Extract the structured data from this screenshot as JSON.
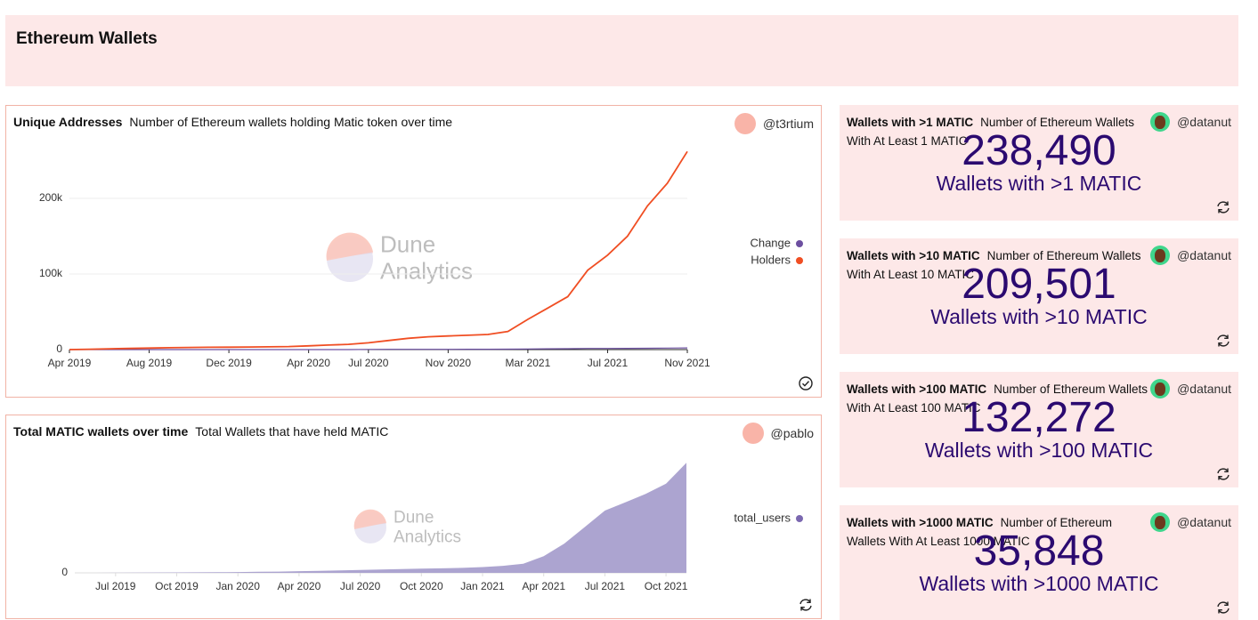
{
  "header": {
    "title": "Ethereum Wallets"
  },
  "chart_data": [
    {
      "type": "line",
      "title": "Unique Addresses",
      "subtitle": "Number of Ethereum wallets holding Matic token over time",
      "author": "@t3rtium",
      "watermark": [
        "Dune",
        "Analytics"
      ],
      "x": [
        "2019-04",
        "2019-05",
        "2019-06",
        "2019-07",
        "2019-08",
        "2019-09",
        "2019-10",
        "2019-11",
        "2019-12",
        "2020-01",
        "2020-02",
        "2020-03",
        "2020-04",
        "2020-05",
        "2020-06",
        "2020-07",
        "2020-08",
        "2020-09",
        "2020-10",
        "2020-11",
        "2020-12",
        "2021-01",
        "2021-02",
        "2021-03",
        "2021-04",
        "2021-05",
        "2021-06",
        "2021-07",
        "2021-08",
        "2021-09",
        "2021-10",
        "2021-11"
      ],
      "series": [
        {
          "name": "Change",
          "color": "#6c4fa0",
          "values": [
            0,
            0,
            0,
            0,
            0,
            0,
            0,
            0,
            0,
            0,
            0,
            0,
            0,
            0,
            0,
            200,
            300,
            300,
            400,
            400,
            500,
            500,
            600,
            800,
            1000,
            1200,
            1500,
            1500,
            1600,
            1800,
            2000,
            2200
          ]
        },
        {
          "name": "Holders",
          "color": "#f04e23",
          "values": [
            0,
            500,
            1000,
            1500,
            2000,
            2500,
            2800,
            3000,
            3200,
            3400,
            3600,
            4000,
            5000,
            6000,
            7000,
            9000,
            12000,
            15000,
            17000,
            18000,
            19000,
            20000,
            24000,
            40000,
            55000,
            70000,
            105000,
            125000,
            150000,
            190000,
            220000,
            262000
          ]
        }
      ],
      "ylim": [
        0,
        280000
      ],
      "yticks": [
        0,
        {
          "value": 100000,
          "label": "100k"
        },
        {
          "value": 200000,
          "label": "200k"
        }
      ],
      "xticks": [
        {
          "value": "2019-04",
          "label": "Apr 2019"
        },
        {
          "value": "2019-08",
          "label": "Aug 2019"
        },
        {
          "value": "2019-12",
          "label": "Dec 2019"
        },
        {
          "value": "2020-04",
          "label": "Apr 2020"
        },
        {
          "value": "2020-07",
          "label": "Jul 2020"
        },
        {
          "value": "2020-11",
          "label": "Nov 2020"
        },
        {
          "value": "2021-03",
          "label": "Mar 2021"
        },
        {
          "value": "2021-07",
          "label": "Jul 2021"
        },
        {
          "value": "2021-11",
          "label": "Nov 2021"
        }
      ],
      "grid": true,
      "legend": "right"
    },
    {
      "type": "area",
      "title": "Total MATIC wallets over time",
      "subtitle": "Total Wallets that have held MATIC",
      "author": "@pablo",
      "watermark": [
        "Dune",
        "Analytics"
      ],
      "x": [
        "2019-05",
        "2019-06",
        "2019-07",
        "2019-08",
        "2019-09",
        "2019-10",
        "2019-11",
        "2019-12",
        "2020-01",
        "2020-02",
        "2020-03",
        "2020-04",
        "2020-05",
        "2020-06",
        "2020-07",
        "2020-08",
        "2020-09",
        "2020-10",
        "2020-11",
        "2020-12",
        "2021-01",
        "2021-02",
        "2021-03",
        "2021-04",
        "2021-05",
        "2021-06",
        "2021-07",
        "2021-08",
        "2021-09",
        "2021-10",
        "2021-11"
      ],
      "series": [
        {
          "name": "total_users",
          "color": "#aca4d0",
          "values": [
            0,
            0,
            200,
            500,
            800,
            1000,
            1200,
            1500,
            2000,
            2500,
            3000,
            4000,
            5000,
            6000,
            7000,
            8000,
            9000,
            10000,
            11000,
            12000,
            14000,
            17000,
            22000,
            40000,
            70000,
            110000,
            150000,
            170000,
            190000,
            215000,
            265000
          ]
        }
      ],
      "ylim": [
        0,
        300000
      ],
      "yticks": [
        0
      ],
      "xticks": [
        {
          "value": "2019-07",
          "label": "Jul 2019"
        },
        {
          "value": "2019-10",
          "label": "Oct 2019"
        },
        {
          "value": "2020-01",
          "label": "Jan 2020"
        },
        {
          "value": "2020-04",
          "label": "Apr 2020"
        },
        {
          "value": "2020-07",
          "label": "Jul 2020"
        },
        {
          "value": "2020-10",
          "label": "Oct 2020"
        },
        {
          "value": "2021-01",
          "label": "Jan 2021"
        },
        {
          "value": "2021-04",
          "label": "Apr 2021"
        },
        {
          "value": "2021-07",
          "label": "Jul 2021"
        },
        {
          "value": "2021-10",
          "label": "Oct 2021"
        }
      ],
      "grid": false,
      "legend": "right"
    }
  ],
  "counters": [
    {
      "title": "Wallets with >1 MATIC",
      "subtitle": "Number of Ethereum Wallets With At Least 1 MATIC",
      "author": "@datanut",
      "value": "238,490",
      "label": "Wallets with >1 MATIC"
    },
    {
      "title": "Wallets with >10 MATIC",
      "subtitle": "Number of Ethereum Wallets With At Least 10 MATIC",
      "author": "@datanut",
      "value": "209,501",
      "label": "Wallets with >10 MATIC"
    },
    {
      "title": "Wallets with >100 MATIC",
      "subtitle": "Number of Ethereum Wallets With At Least 100 MATIC",
      "author": "@datanut",
      "value": "132,272",
      "label": "Wallets with >100 MATIC"
    },
    {
      "title": "Wallets with >1000 MATIC",
      "subtitle": "Number of Ethereum Wallets With At Least 1000 MATIC",
      "author": "@datanut",
      "value": "35,848",
      "label": "Wallets with >1000 MATIC"
    }
  ]
}
